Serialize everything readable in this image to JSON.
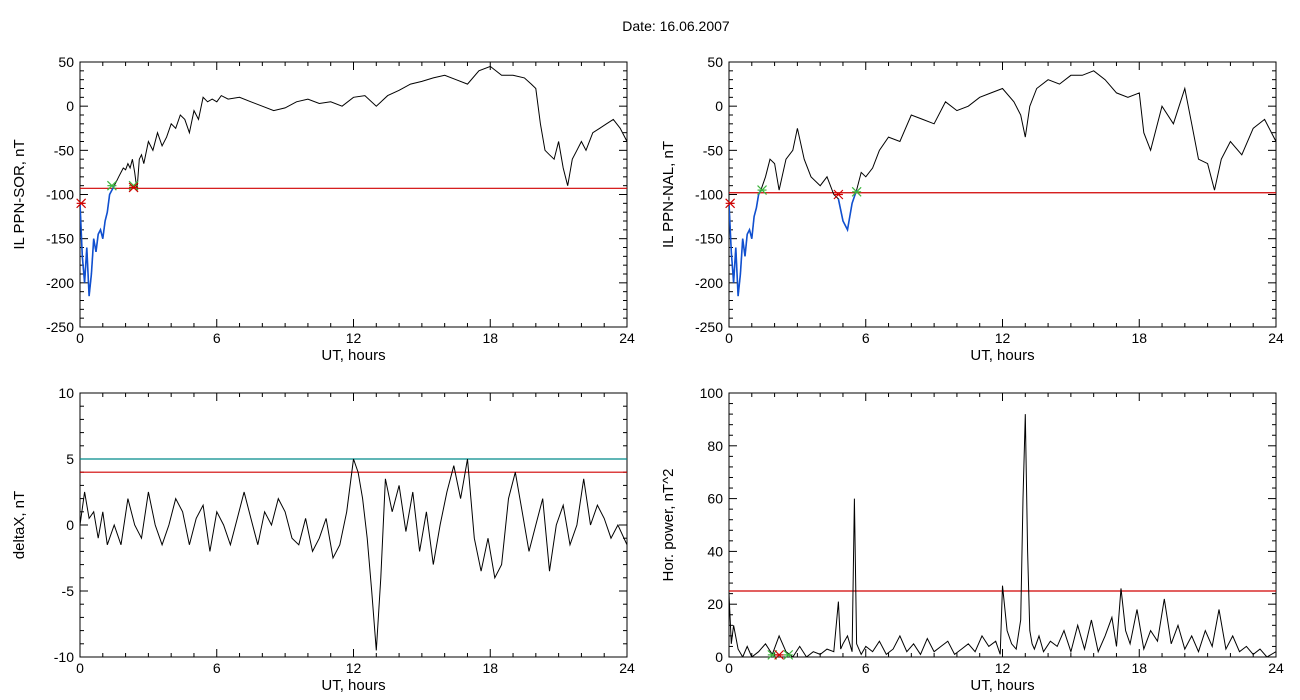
{
  "title": "Date:  16.06.2007",
  "colors": {
    "threshold": "#d00000",
    "threshold2": "#008b8b",
    "highlight": "#1050d0",
    "marker_start": "#3cb43c",
    "marker_end": "#d00000",
    "trace": "#000000"
  },
  "chart_data": [
    {
      "type": "line",
      "xlabel": "UT, hours",
      "ylabel": "IL PPN-SOR, nT",
      "xlim": [
        0,
        24
      ],
      "ylim": [
        -250,
        50
      ],
      "xticks": [
        0,
        6,
        12,
        18,
        24
      ],
      "yticks": [
        -250,
        -200,
        -150,
        -100,
        -50,
        0,
        50
      ],
      "series": [
        {
          "x": [
            0,
            0.1,
            0.2,
            0.3,
            0.4,
            0.5,
            0.6,
            0.7,
            0.8,
            0.9,
            1.0,
            1.1,
            1.2,
            1.3,
            1.4,
            1.5,
            1.6,
            1.7,
            1.8,
            1.9,
            2.0,
            2.1,
            2.2,
            2.3,
            2.4,
            2.5,
            2.6,
            2.7,
            2.8,
            3.0,
            3.2,
            3.4,
            3.6,
            3.8,
            4.0,
            4.2,
            4.4,
            4.6,
            4.8,
            5.0,
            5.2,
            5.4,
            5.6,
            5.8,
            6.0,
            6.2,
            6.5,
            7,
            7.5,
            8,
            8.5,
            9,
            9.5,
            10,
            10.5,
            11,
            11.5,
            12,
            12.5,
            13,
            13.5,
            14,
            14.5,
            15,
            15.5,
            16,
            16.5,
            17,
            17.5,
            18,
            18.5,
            19,
            19.5,
            19.8,
            20.0,
            20.2,
            20.4,
            20.6,
            20.8,
            21.0,
            21.2,
            21.4,
            21.6,
            21.8,
            22.0,
            22.2,
            22.5,
            22.8,
            23.1,
            23.4,
            23.7,
            24
          ],
          "y": [
            -110,
            -170,
            -200,
            -160,
            -215,
            -190,
            -150,
            -165,
            -145,
            -140,
            -150,
            -130,
            -120,
            -100,
            -95,
            -90,
            -85,
            -80,
            -75,
            -70,
            -72,
            -65,
            -70,
            -60,
            -75,
            -95,
            -60,
            -55,
            -65,
            -40,
            -50,
            -30,
            -45,
            -35,
            -20,
            -25,
            -10,
            -15,
            -30,
            -5,
            -15,
            10,
            5,
            8,
            5,
            12,
            8,
            10,
            5,
            0,
            -5,
            -2,
            5,
            8,
            3,
            5,
            0,
            10,
            12,
            0,
            12,
            18,
            25,
            28,
            32,
            35,
            30,
            25,
            40,
            45,
            35,
            35,
            32,
            25,
            20,
            -20,
            -50,
            -55,
            -60,
            -40,
            -70,
            -90,
            -60,
            -50,
            -40,
            -50,
            -30,
            -25,
            -20,
            -15,
            -25,
            -40
          ]
        },
        {
          "x": [
            0,
            0.1,
            0.2,
            0.3,
            0.4,
            0.5,
            0.6,
            0.7,
            0.8,
            0.9,
            1.0,
            1.1,
            1.2,
            1.3,
            1.4,
            1.5
          ],
          "y": [
            -110,
            -170,
            -200,
            -160,
            -215,
            -190,
            -150,
            -165,
            -145,
            -140,
            -150,
            -130,
            -120,
            -100,
            -95,
            -90
          ]
        }
      ],
      "thresholds": [
        {
          "y": -93,
          "color": "#d00000"
        }
      ],
      "markers": [
        {
          "x": 0.05,
          "y": -110,
          "color": "#d00000"
        },
        {
          "x": 1.4,
          "y": -90,
          "color": "#3cb43c"
        },
        {
          "x": 2.35,
          "y": -90,
          "color": "#3cb43c"
        },
        {
          "x": 2.35,
          "y": -92,
          "color": "#d00000"
        }
      ]
    },
    {
      "type": "line",
      "xlabel": "UT, hours",
      "ylabel": "IL PPN-NAL, nT",
      "xlim": [
        0,
        24
      ],
      "ylim": [
        -250,
        50
      ],
      "xticks": [
        0,
        6,
        12,
        18,
        24
      ],
      "yticks": [
        -250,
        -200,
        -150,
        -100,
        -50,
        0,
        50
      ],
      "series": [
        {
          "x": [
            0,
            0.1,
            0.2,
            0.3,
            0.4,
            0.5,
            0.6,
            0.7,
            0.8,
            0.9,
            1.0,
            1.1,
            1.2,
            1.3,
            1.4,
            1.6,
            1.8,
            2.0,
            2.2,
            2.5,
            2.8,
            3.0,
            3.3,
            3.6,
            4.0,
            4.3,
            4.6,
            4.8,
            5.0,
            5.2,
            5.4,
            5.6,
            5.8,
            6.0,
            6.3,
            6.6,
            7.0,
            7.5,
            8,
            8.5,
            9,
            9.5,
            10,
            10.5,
            11,
            11.5,
            12,
            12.5,
            12.8,
            13.0,
            13.2,
            13.5,
            14,
            14.5,
            15,
            15.5,
            16,
            16.5,
            17,
            17.5,
            18,
            18.2,
            18.5,
            19,
            19.5,
            20,
            20.3,
            20.6,
            21,
            21.3,
            21.6,
            22,
            22.5,
            23,
            23.5,
            24
          ],
          "y": [
            -110,
            -165,
            -200,
            -160,
            -215,
            -190,
            -150,
            -170,
            -145,
            -140,
            -150,
            -125,
            -115,
            -100,
            -95,
            -80,
            -60,
            -65,
            -95,
            -60,
            -50,
            -25,
            -60,
            -80,
            -90,
            -80,
            -100,
            -105,
            -130,
            -140,
            -110,
            -95,
            -75,
            -80,
            -70,
            -50,
            -35,
            -40,
            -10,
            -15,
            -20,
            5,
            -5,
            0,
            10,
            15,
            20,
            5,
            -10,
            -35,
            0,
            20,
            30,
            25,
            35,
            35,
            40,
            30,
            15,
            10,
            15,
            -30,
            -50,
            0,
            -20,
            20,
            -20,
            -60,
            -65,
            -95,
            -60,
            -40,
            -55,
            -25,
            -15,
            -40
          ]
        },
        {
          "x": [
            0,
            0.1,
            0.2,
            0.3,
            0.4,
            0.5,
            0.6,
            0.7,
            0.8,
            0.9,
            1.0,
            1.1,
            1.2,
            1.3,
            1.4
          ],
          "y": [
            -110,
            -165,
            -200,
            -160,
            -215,
            -190,
            -150,
            -170,
            -145,
            -140,
            -150,
            -125,
            -115,
            -100,
            -95
          ]
        },
        {
          "x": [
            4.8,
            5.0,
            5.2,
            5.4,
            5.6
          ],
          "y": [
            -105,
            -130,
            -140,
            -110,
            -95
          ]
        }
      ],
      "thresholds": [
        {
          "y": -98,
          "color": "#d00000"
        }
      ],
      "markers": [
        {
          "x": 0.05,
          "y": -110,
          "color": "#d00000"
        },
        {
          "x": 1.45,
          "y": -95,
          "color": "#3cb43c"
        },
        {
          "x": 4.8,
          "y": -100,
          "color": "#d00000"
        },
        {
          "x": 5.6,
          "y": -97,
          "color": "#3cb43c"
        }
      ]
    },
    {
      "type": "line",
      "xlabel": "UT, hours",
      "ylabel": "deltaX, nT",
      "xlim": [
        0,
        24
      ],
      "ylim": [
        -10,
        10
      ],
      "xticks": [
        0,
        6,
        12,
        18,
        24
      ],
      "yticks": [
        -10,
        -5,
        0,
        5,
        10
      ],
      "series": [
        {
          "x": [
            0,
            0.2,
            0.4,
            0.6,
            0.8,
            1.0,
            1.2,
            1.5,
            1.8,
            2.1,
            2.4,
            2.7,
            3.0,
            3.3,
            3.6,
            3.9,
            4.2,
            4.5,
            4.8,
            5.1,
            5.4,
            5.7,
            6.0,
            6.3,
            6.6,
            6.9,
            7.2,
            7.5,
            7.8,
            8.1,
            8.4,
            8.7,
            9.0,
            9.3,
            9.6,
            9.9,
            10.2,
            10.5,
            10.8,
            11.1,
            11.4,
            11.7,
            12.0,
            12.2,
            12.4,
            12.6,
            12.8,
            13.0,
            13.2,
            13.4,
            13.7,
            14.0,
            14.3,
            14.6,
            14.9,
            15.2,
            15.5,
            15.8,
            16.1,
            16.4,
            16.7,
            17.0,
            17.3,
            17.6,
            17.9,
            18.2,
            18.5,
            18.8,
            19.1,
            19.4,
            19.7,
            20.0,
            20.3,
            20.6,
            20.9,
            21.2,
            21.5,
            21.8,
            22.1,
            22.4,
            22.7,
            23.0,
            23.3,
            23.6,
            24
          ],
          "y": [
            0,
            2.5,
            0.5,
            1,
            -1,
            1,
            -1.5,
            0,
            -1.5,
            2,
            0,
            -1,
            2.5,
            0,
            -1.5,
            0,
            2,
            1,
            -1.5,
            0.5,
            1.5,
            -2,
            1,
            0,
            -1.5,
            0.5,
            2.5,
            0.5,
            -1.5,
            1,
            0,
            2,
            1,
            -1,
            -1.5,
            0.5,
            -2,
            -1,
            0.5,
            -2.5,
            -1.5,
            1,
            5,
            4,
            2,
            -1,
            -5,
            -9.5,
            -4,
            3.5,
            1,
            3,
            -0.5,
            2.5,
            -2,
            1,
            -3,
            0,
            2.5,
            4.5,
            2,
            5,
            -1,
            -3.5,
            -1,
            -4,
            -3,
            2,
            4,
            1,
            -2,
            0,
            2,
            -3.5,
            0,
            1.5,
            -1.5,
            0,
            3.5,
            0,
            1.5,
            0.5,
            -1,
            0,
            -1.5
          ]
        }
      ],
      "thresholds": [
        {
          "y": 5,
          "color": "#008b8b"
        },
        {
          "y": 4,
          "color": "#d00000"
        }
      ],
      "markers": []
    },
    {
      "type": "line",
      "xlabel": "UT, hours",
      "ylabel": "Hor. power, nT^2",
      "xlim": [
        0,
        24
      ],
      "ylim": [
        0,
        100
      ],
      "xticks": [
        0,
        6,
        12,
        18,
        24
      ],
      "yticks": [
        0,
        20,
        40,
        60,
        80,
        100
      ],
      "series": [
        {
          "x": [
            0,
            0.1,
            0.2,
            0.4,
            0.6,
            0.8,
            1.0,
            1.3,
            1.6,
            1.9,
            2.2,
            2.5,
            2.8,
            3.1,
            3.4,
            3.7,
            4.0,
            4.3,
            4.6,
            4.8,
            4.9,
            5.0,
            5.2,
            5.4,
            5.5,
            5.6,
            5.7,
            5.8,
            6.0,
            6.3,
            6.6,
            6.9,
            7.2,
            7.5,
            7.8,
            8.1,
            8.4,
            8.7,
            9.0,
            9.3,
            9.6,
            9.9,
            10.2,
            10.5,
            10.8,
            11.1,
            11.4,
            11.7,
            11.9,
            12.0,
            12.2,
            12.4,
            12.6,
            12.8,
            12.9,
            13.0,
            13.1,
            13.2,
            13.3,
            13.4,
            13.6,
            13.8,
            14.1,
            14.4,
            14.7,
            15.0,
            15.3,
            15.6,
            15.9,
            16.2,
            16.5,
            16.8,
            17.0,
            17.2,
            17.4,
            17.6,
            17.9,
            18.2,
            18.5,
            18.8,
            19.1,
            19.4,
            19.7,
            20.0,
            20.3,
            20.6,
            20.9,
            21.2,
            21.5,
            21.8,
            22.1,
            22.4,
            22.7,
            23.0,
            23.3,
            23.6,
            24
          ],
          "y": [
            24,
            5,
            12,
            3,
            0,
            4,
            0,
            2,
            5,
            1,
            8,
            2,
            0,
            4,
            0,
            2,
            1,
            3,
            2,
            21,
            3,
            5,
            8,
            2,
            60,
            5,
            3,
            1,
            4,
            2,
            6,
            1,
            3,
            8,
            2,
            5,
            1,
            7,
            2,
            4,
            6,
            1,
            3,
            5,
            2,
            8,
            4,
            6,
            1,
            27,
            10,
            5,
            3,
            14,
            60,
            92,
            40,
            10,
            5,
            3,
            8,
            2,
            6,
            4,
            10,
            2,
            12,
            3,
            14,
            2,
            8,
            15,
            4,
            26,
            10,
            5,
            18,
            3,
            10,
            6,
            22,
            5,
            12,
            3,
            8,
            2,
            10,
            4,
            18,
            3,
            8,
            2,
            4,
            1,
            3,
            0,
            2
          ]
        }
      ],
      "thresholds": [
        {
          "y": 25,
          "color": "#d00000"
        }
      ],
      "markers": [
        {
          "x": 1.9,
          "y": 0.8,
          "color": "#3cb43c"
        },
        {
          "x": 2.2,
          "y": 0.8,
          "color": "#d00000"
        },
        {
          "x": 2.6,
          "y": 0.8,
          "color": "#3cb43c"
        }
      ]
    }
  ]
}
